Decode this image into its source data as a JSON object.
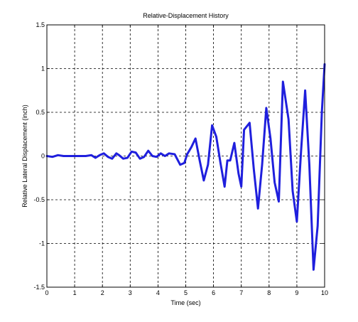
{
  "chart_data": {
    "type": "line",
    "title": "Relative-Displacement History",
    "xlabel": "Time (sec)",
    "ylabel": "Relative Lateral Displacement (inch)",
    "xlim": [
      0,
      10
    ],
    "ylim": [
      -1.5,
      1.5
    ],
    "xticks": [
      "0",
      "1",
      "2",
      "3",
      "4",
      "5",
      "6",
      "7",
      "8",
      "9",
      "10"
    ],
    "yticks": [
      "-1.5",
      "-1",
      "-0.5",
      "0",
      "0.5",
      "1",
      "1.5"
    ],
    "grid": true,
    "line_color": "#1f1fdd",
    "series": [
      {
        "x": [
          0,
          0.2,
          0.4,
          0.6,
          0.8,
          1.0,
          1.2,
          1.4,
          1.6,
          1.75,
          1.9,
          2.05,
          2.2,
          2.35,
          2.5,
          2.6,
          2.75,
          2.9,
          3.05,
          3.2,
          3.35,
          3.5,
          3.65,
          3.8,
          3.95,
          4.1,
          4.25,
          4.4,
          4.6,
          4.8,
          4.95,
          5.05,
          5.2,
          5.35,
          5.5,
          5.65,
          5.8,
          5.95,
          6.1,
          6.25,
          6.4,
          6.5,
          6.6,
          6.75,
          6.9,
          7.0,
          7.1,
          7.3,
          7.45,
          7.6,
          7.75,
          7.9,
          8.05,
          8.2,
          8.35,
          8.5,
          8.7,
          8.85,
          9.0,
          9.15,
          9.3,
          9.45,
          9.6,
          9.75,
          9.9,
          10.0
        ],
        "y": [
          0.0,
          -0.01,
          0.01,
          0.0,
          0.0,
          0.0,
          0.0,
          0.0,
          0.01,
          -0.02,
          0.01,
          0.03,
          -0.01,
          -0.03,
          0.03,
          0.01,
          -0.03,
          -0.02,
          0.05,
          0.04,
          -0.03,
          -0.01,
          0.06,
          0.0,
          -0.01,
          0.03,
          0.0,
          0.03,
          0.02,
          -0.1,
          -0.08,
          0.02,
          0.1,
          0.2,
          -0.05,
          -0.28,
          -0.1,
          0.35,
          0.22,
          -0.08,
          -0.35,
          -0.05,
          -0.05,
          0.15,
          -0.2,
          -0.35,
          0.3,
          0.38,
          -0.15,
          -0.6,
          -0.1,
          0.55,
          0.2,
          -0.3,
          -0.52,
          0.85,
          0.42,
          -0.4,
          -0.75,
          0.05,
          0.75,
          -0.1,
          -1.3,
          -0.8,
          0.5,
          1.05
        ]
      }
    ]
  }
}
